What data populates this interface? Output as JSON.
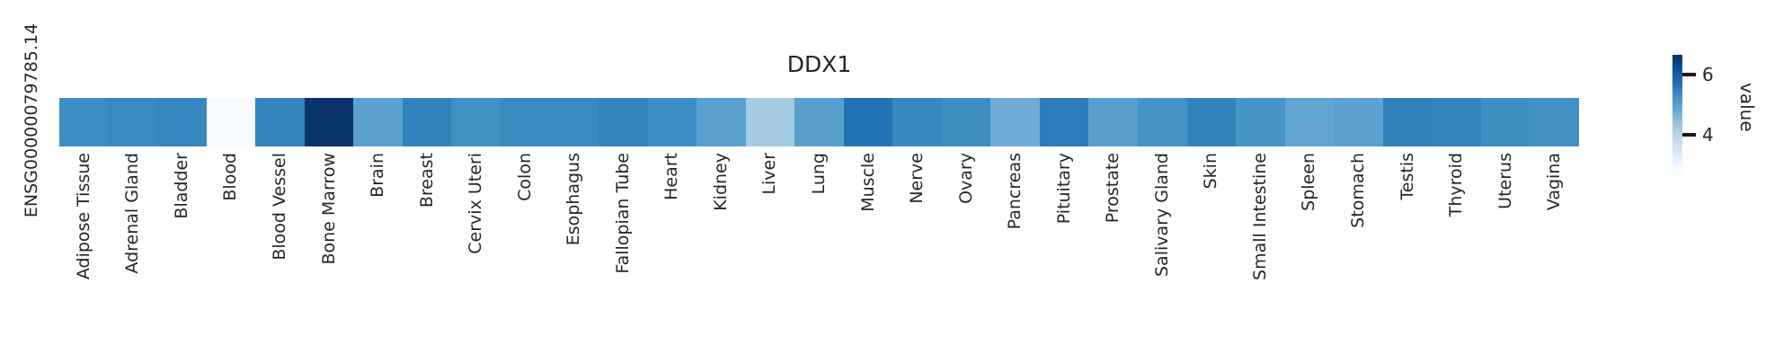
{
  "figure": {
    "title": "DDX1",
    "row_label": "ENSG00000079785.14",
    "text_color": "#262626",
    "background": "#ffffff",
    "colorbar": {
      "label": "value",
      "tick_labels": {
        "top": "6",
        "bottom": "4"
      },
      "gradient_stops": [
        "#08306b",
        "#08519c",
        "#2171b5",
        "#4292c6",
        "#6baed6",
        "#9ecae1",
        "#c6dbef",
        "#deebf7",
        "#f7fbff"
      ]
    }
  },
  "chart_data": {
    "type": "heatmap",
    "title": "DDX1",
    "colormap": "Blues",
    "rows": [
      "ENSG00000079785.14"
    ],
    "categories": [
      "Adipose Tissue",
      "Adrenal Gland",
      "Bladder",
      "Blood",
      "Blood Vessel",
      "Bone Marrow",
      "Brain",
      "Breast",
      "Cervix Uteri",
      "Colon",
      "Esophagus",
      "Fallopian Tube",
      "Heart",
      "Kidney",
      "Liver",
      "Lung",
      "Muscle",
      "Nerve",
      "Ovary",
      "Pancreas",
      "Pituitary",
      "Prostate",
      "Salivary Gland",
      "Skin",
      "Small Intestine",
      "Spleen",
      "Stomach",
      "Testis",
      "Thyroid",
      "Uterus",
      "Vagina"
    ],
    "values": [
      [
        5.1,
        5.2,
        5.2,
        2.9,
        5.3,
        6.5,
        4.9,
        5.3,
        5.1,
        5.2,
        5.2,
        5.3,
        5.1,
        4.9,
        4.2,
        5.0,
        5.7,
        5.2,
        5.1,
        4.8,
        5.5,
        5.0,
        5.1,
        5.3,
        5.0,
        4.8,
        4.9,
        5.4,
        5.3,
        5.1,
        5.1
      ]
    ],
    "cell_colors": [
      [
        "#3d8dc4",
        "#3a8ac1",
        "#3787bf",
        "#f7fbff",
        "#3585be",
        "#0a336b",
        "#5aa2cf",
        "#3282bd",
        "#4191c6",
        "#3a8ac1",
        "#3a8ac1",
        "#3484be",
        "#3d8dc4",
        "#59a1ce",
        "#a3cbe3",
        "#57a0cd",
        "#2272b6",
        "#3888c0",
        "#3e8ec4",
        "#6fadd6",
        "#2c7cba",
        "#57a0cd",
        "#4593c7",
        "#3282bd",
        "#4795c8",
        "#61a6d2",
        "#5aa2cf",
        "#3080bc",
        "#3484be",
        "#3e8dc3",
        "#4290c5"
      ]
    ],
    "colorbar_label": "value",
    "colorbar_ticks": [
      4,
      6
    ],
    "colorbar_range_approx": [
      2.9,
      6.65
    ],
    "xticklabel_rotation": 90,
    "legend_position": "right",
    "grid": false
  }
}
